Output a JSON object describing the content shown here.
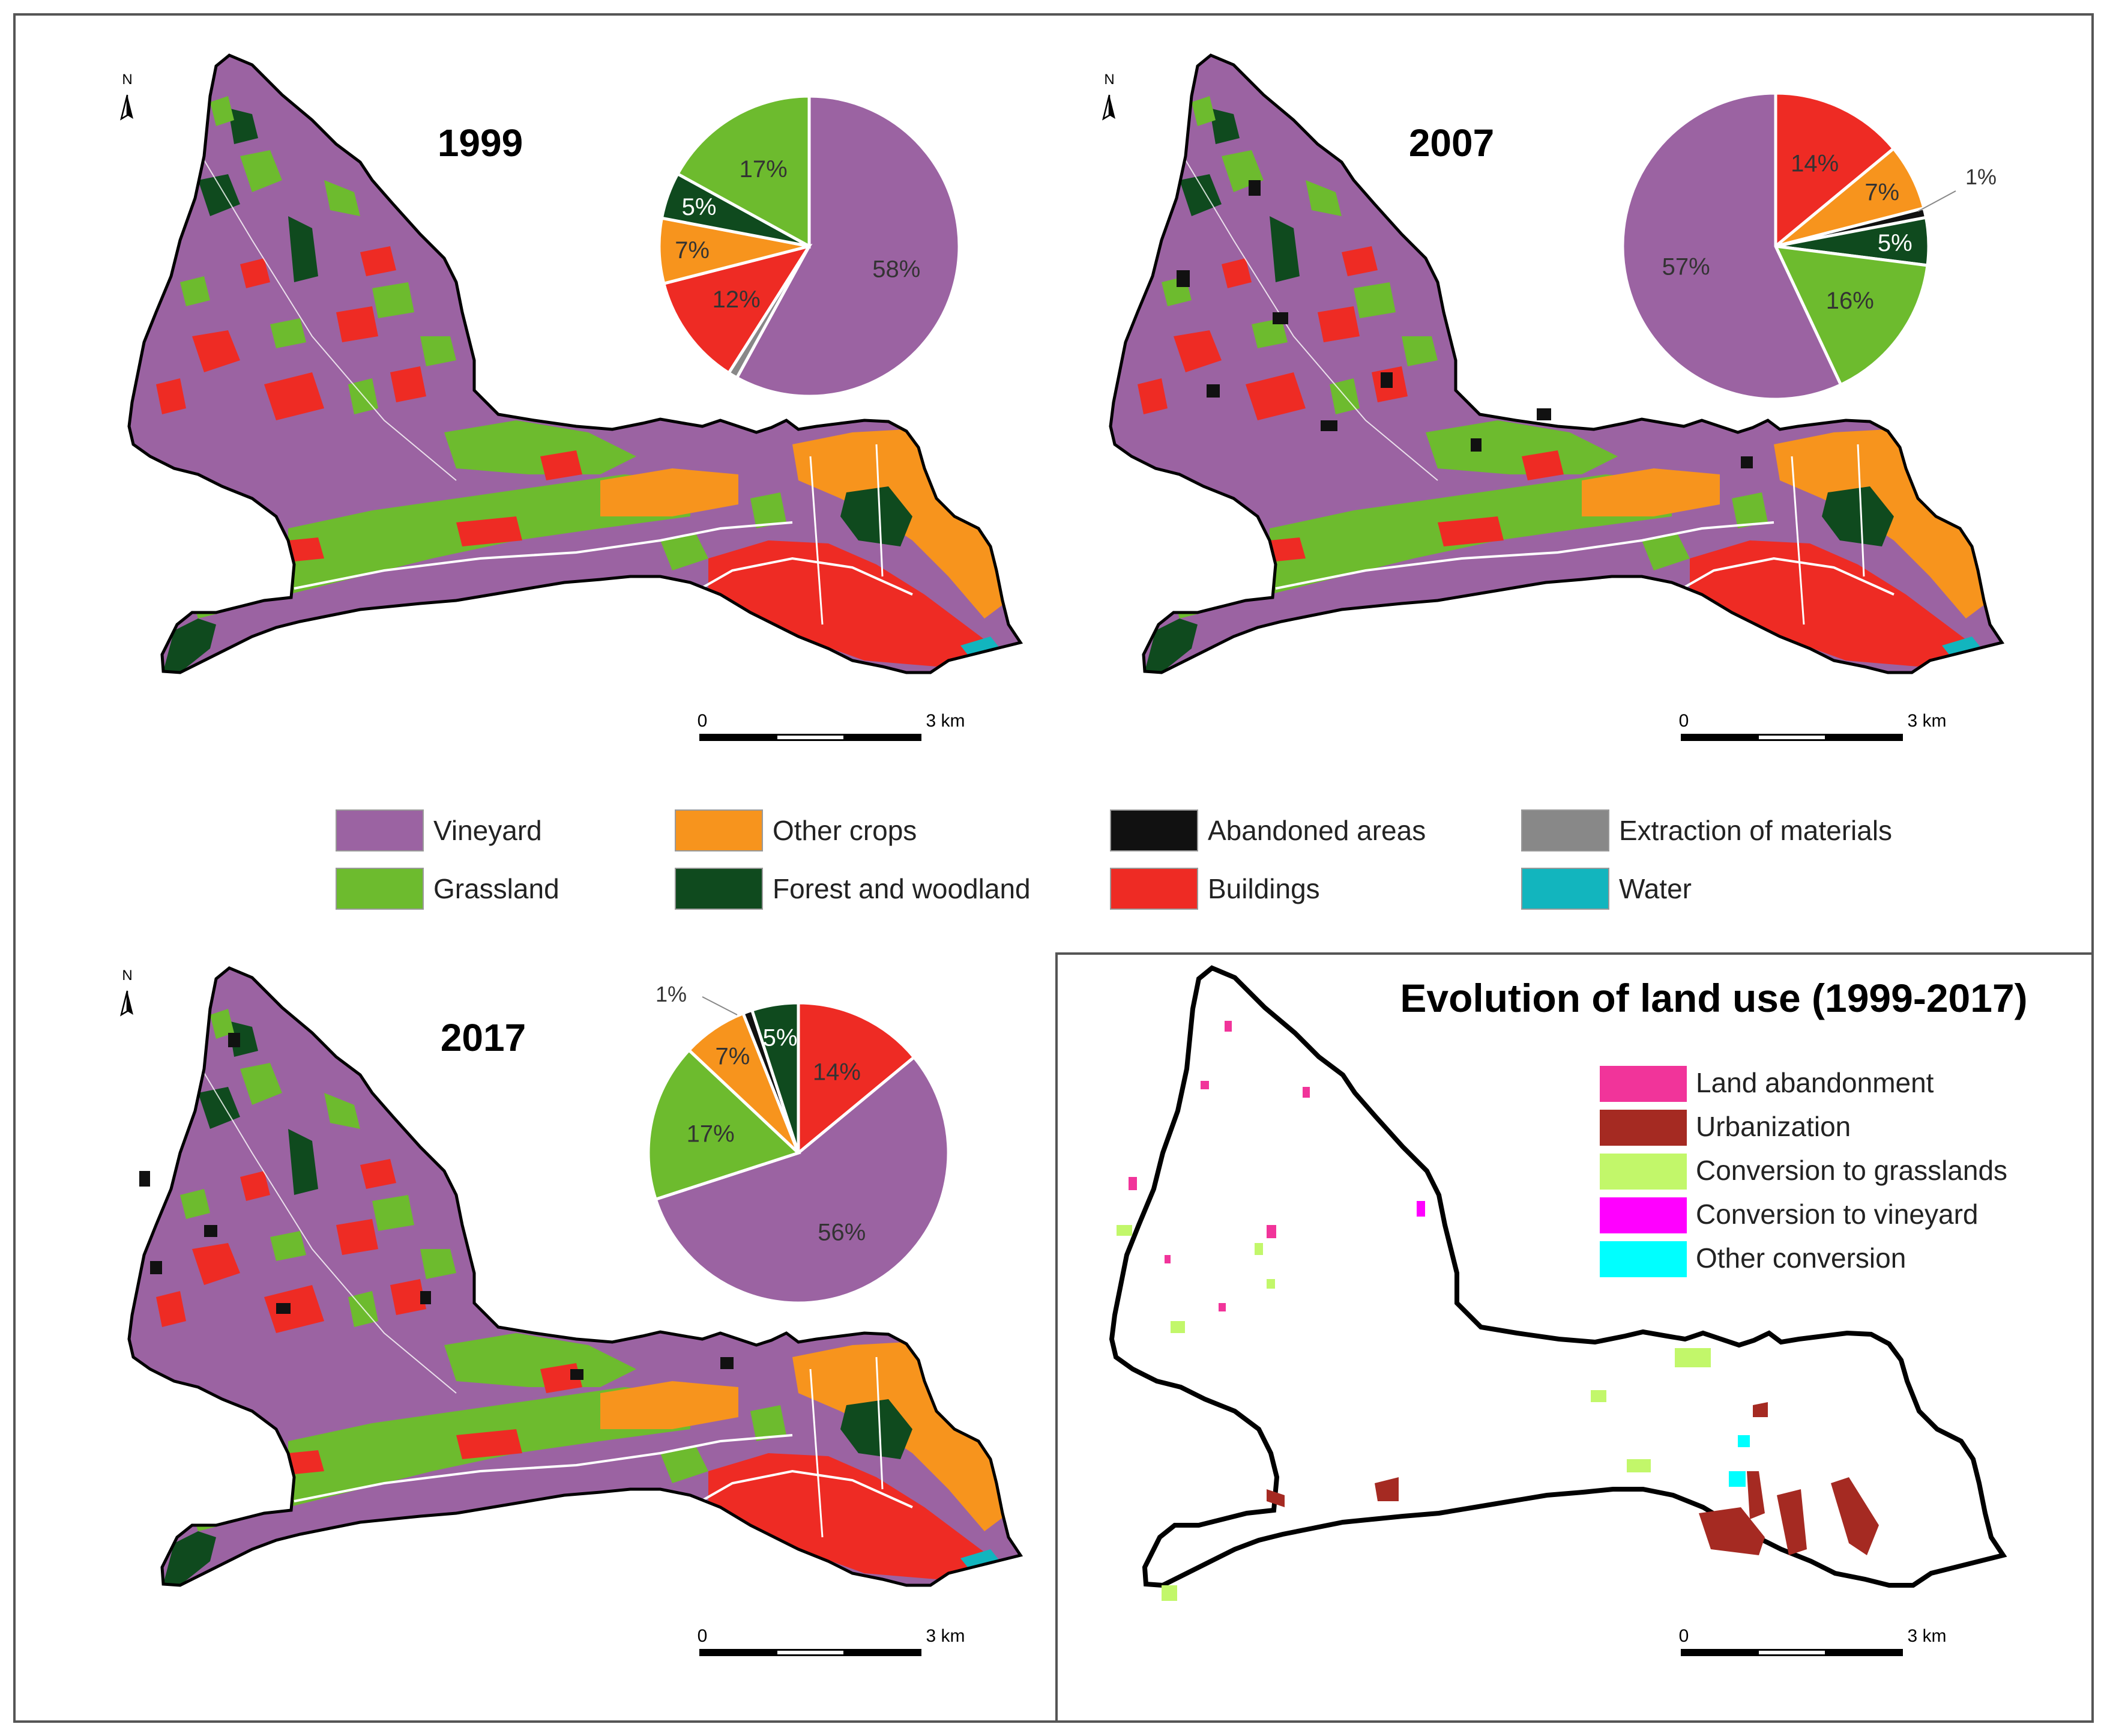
{
  "colors": {
    "vineyard": "#9b63a2",
    "grassland": "#6dbb2e",
    "other_crops": "#f7941d",
    "forest": "#0f4a1e",
    "abandoned": "#111111",
    "buildings": "#ee2b24",
    "extraction": "#888888",
    "water": "#12b5be",
    "land_abandonment": "#f1349a",
    "urbanization": "#a52a22",
    "conversion_grasslands": "#c2f76a",
    "conversion_vineyard": "#ff00ff",
    "other_conversion": "#00ffff"
  },
  "panels": {
    "p1999": {
      "year": "1999",
      "north": "N",
      "scale_zero": "0",
      "scale_end": "3 km"
    },
    "p2007": {
      "year": "2007",
      "north": "N",
      "scale_zero": "0",
      "scale_end": "3 km"
    },
    "p2017": {
      "year": "2017",
      "north": "N",
      "scale_zero": "0",
      "scale_end": "3 km"
    },
    "evolution": {
      "title": "Evolution of land use (1999-2017)",
      "scale_zero": "0",
      "scale_end": "3 km"
    }
  },
  "pies": {
    "p1999": [
      {
        "key": "vineyard",
        "value": 58,
        "label": "58%"
      },
      {
        "key": "extraction",
        "value": 1,
        "label": ""
      },
      {
        "key": "buildings",
        "value": 12,
        "label": "12%"
      },
      {
        "key": "other_crops",
        "value": 7,
        "label": "7%"
      },
      {
        "key": "forest",
        "value": 5,
        "label": "5%"
      },
      {
        "key": "grassland",
        "value": 17,
        "label": "17%"
      }
    ],
    "p2007": [
      {
        "key": "buildings",
        "value": 14,
        "label": "14%"
      },
      {
        "key": "other_crops",
        "value": 7,
        "label": "7%"
      },
      {
        "key": "abandoned",
        "value": 1,
        "label": ""
      },
      {
        "key": "forest",
        "value": 5,
        "label": "5%"
      },
      {
        "key": "grassland",
        "value": 16,
        "label": "16%"
      },
      {
        "key": "vineyard",
        "value": 57,
        "label": "57%"
      }
    ],
    "p2017": [
      {
        "key": "buildings",
        "value": 14,
        "label": "14%"
      },
      {
        "key": "vineyard",
        "value": 56,
        "label": "56%"
      },
      {
        "key": "grassland",
        "value": 17,
        "label": "17%"
      },
      {
        "key": "other_crops",
        "value": 7,
        "label": "7%"
      },
      {
        "key": "abandoned",
        "value": 1,
        "label": ""
      },
      {
        "key": "forest",
        "value": 5,
        "label": "5%"
      }
    ]
  },
  "pie_callouts": {
    "p2007_one": "1%",
    "p2017_one": "1%"
  },
  "legend": [
    {
      "key": "vineyard",
      "label": "Vineyard"
    },
    {
      "key": "other_crops",
      "label": "Other crops"
    },
    {
      "key": "abandoned",
      "label": "Abandoned areas"
    },
    {
      "key": "extraction",
      "label": "Extraction of materials"
    },
    {
      "key": "grassland",
      "label": "Grassland"
    },
    {
      "key": "forest",
      "label": "Forest and woodland"
    },
    {
      "key": "buildings",
      "label": "Buildings"
    },
    {
      "key": "water",
      "label": "Water"
    }
  ],
  "evolution_legend": [
    {
      "key": "land_abandonment",
      "label": "Land abandonment"
    },
    {
      "key": "urbanization",
      "label": "Urbanization"
    },
    {
      "key": "conversion_grasslands",
      "label": "Conversion to grasslands"
    },
    {
      "key": "conversion_vineyard",
      "label": "Conversion to vineyard"
    },
    {
      "key": "other_conversion",
      "label": "Other conversion"
    }
  ]
}
